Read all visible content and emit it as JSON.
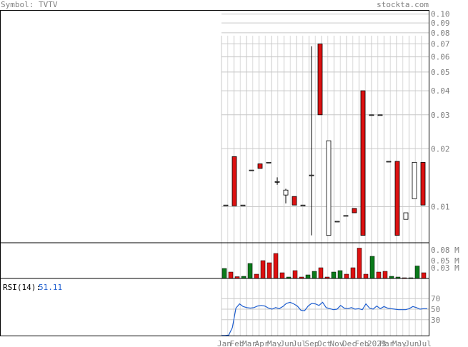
{
  "header": {
    "symbol_label": "Symbol: TVTV",
    "brand": "stockta.com"
  },
  "colors": {
    "up": "#ffffff",
    "down": "#dd1111",
    "vol_up": "#0a7a1a",
    "vol_down": "#dd1111",
    "rsi_line": "#1f5fd0",
    "grid": "#c8c8c8",
    "axis_text": "#808080",
    "frame": "#000000"
  },
  "chart_data": [
    {
      "type": "candlestick",
      "panel": "price",
      "y_scale": "log",
      "ylim": [
        0.0065,
        0.105
      ],
      "y_ticks": [
        0.01,
        0.02,
        0.03,
        0.04,
        0.05,
        0.06,
        0.07,
        0.08,
        0.09,
        0.1
      ],
      "y_tick_labels": [
        "0.01",
        "0.02",
        "0.03",
        "0.04",
        "0.05",
        "0.06",
        "0.07",
        "0.08",
        "0.09",
        "0.10"
      ],
      "x_labels": [
        "Jan",
        "Feb",
        "Mar",
        "Apr",
        "May",
        "Jun",
        "Jul",
        "Sep",
        "Oct",
        "Nov",
        "Dec",
        "Feb",
        "2023",
        "Mar",
        "May",
        "Jun",
        "Jul"
      ],
      "x_label_text": [
        "Jan",
        "Feb",
        "Mar",
        "Apr",
        "May",
        "Jun",
        "Jul",
        "Sep",
        "Oct",
        "Nov",
        "Dec",
        "Feb",
        "2023",
        "Mar",
        "May",
        "Jun",
        "Jul"
      ],
      "bars": [
        {
          "o": 0.0102,
          "h": 0.0102,
          "l": 0.0102,
          "c": 0.0102
        },
        {
          "o": 0.0182,
          "h": 0.0182,
          "l": 0.0101,
          "c": 0.0101
        },
        {
          "o": 0.0102,
          "h": 0.0102,
          "l": 0.0102,
          "c": 0.0102
        },
        {
          "o": 0.0155,
          "h": 0.0155,
          "l": 0.0155,
          "c": 0.0155
        },
        {
          "o": 0.0167,
          "h": 0.0167,
          "l": 0.0158,
          "c": 0.0158
        },
        {
          "o": 0.017,
          "h": 0.017,
          "l": 0.017,
          "c": 0.017
        },
        {
          "o": 0.0135,
          "h": 0.0142,
          "l": 0.013,
          "c": 0.0135
        },
        {
          "o": 0.0115,
          "h": 0.0124,
          "l": 0.0104,
          "c": 0.0122
        },
        {
          "o": 0.0113,
          "h": 0.0113,
          "l": 0.0102,
          "c": 0.0102
        },
        {
          "o": 0.0102,
          "h": 0.0102,
          "l": 0.0102,
          "c": 0.0102
        },
        {
          "o": 0.0146,
          "h": 0.068,
          "l": 0.0071,
          "c": 0.0146
        },
        {
          "o": 0.07,
          "h": 0.07,
          "l": 0.03,
          "c": 0.03
        },
        {
          "o": 0.0071,
          "h": 0.022,
          "l": 0.0071,
          "c": 0.022
        },
        {
          "o": 0.0084,
          "h": 0.0084,
          "l": 0.0084,
          "c": 0.0084
        },
        {
          "o": 0.009,
          "h": 0.009,
          "l": 0.009,
          "c": 0.009
        },
        {
          "o": 0.0098,
          "h": 0.0098,
          "l": 0.0093,
          "c": 0.0093
        },
        {
          "o": 0.04,
          "h": 0.04,
          "l": 0.0071,
          "c": 0.0071
        },
        {
          "o": 0.03,
          "h": 0.03,
          "l": 0.03,
          "c": 0.03
        },
        {
          "o": 0.03,
          "h": 0.03,
          "l": 0.03,
          "c": 0.03
        },
        {
          "o": 0.0172,
          "h": 0.0172,
          "l": 0.0172,
          "c": 0.0172
        },
        {
          "o": 0.0172,
          "h": 0.0172,
          "l": 0.0071,
          "c": 0.0071
        },
        {
          "o": 0.0086,
          "h": 0.0093,
          "l": 0.0086,
          "c": 0.0093
        },
        {
          "o": 0.011,
          "h": 0.017,
          "l": 0.011,
          "c": 0.017
        },
        {
          "o": 0.017,
          "h": 0.017,
          "l": 0.0102,
          "c": 0.0102
        }
      ]
    },
    {
      "type": "bar",
      "panel": "volume",
      "y_tick_labels": [
        "0.08 M",
        "0.05 M",
        "0.03 M"
      ],
      "y_ticks": [
        0.08,
        0.05,
        0.03
      ],
      "values": [
        {
          "v": 0.028,
          "dir": "up"
        },
        {
          "v": 0.018,
          "dir": "down"
        },
        {
          "v": 0.005,
          "dir": "down"
        },
        {
          "v": 0.006,
          "dir": "up"
        },
        {
          "v": 0.042,
          "dir": "up"
        },
        {
          "v": 0.012,
          "dir": "down"
        },
        {
          "v": 0.05,
          "dir": "down"
        },
        {
          "v": 0.044,
          "dir": "down"
        },
        {
          "v": 0.07,
          "dir": "down"
        },
        {
          "v": 0.016,
          "dir": "down"
        },
        {
          "v": 0.004,
          "dir": "up"
        },
        {
          "v": 0.022,
          "dir": "down"
        },
        {
          "v": 0.004,
          "dir": "down"
        },
        {
          "v": 0.01,
          "dir": "up"
        },
        {
          "v": 0.02,
          "dir": "up"
        },
        {
          "v": 0.03,
          "dir": "down"
        },
        {
          "v": 0.004,
          "dir": "down"
        },
        {
          "v": 0.018,
          "dir": "up"
        },
        {
          "v": 0.022,
          "dir": "up"
        },
        {
          "v": 0.012,
          "dir": "down"
        },
        {
          "v": 0.03,
          "dir": "down"
        },
        {
          "v": 0.085,
          "dir": "down"
        },
        {
          "v": 0.012,
          "dir": "down"
        },
        {
          "v": 0.062,
          "dir": "up"
        },
        {
          "v": 0.018,
          "dir": "down"
        },
        {
          "v": 0.02,
          "dir": "down"
        },
        {
          "v": 0.006,
          "dir": "up"
        },
        {
          "v": 0.004,
          "dir": "up"
        },
        {
          "v": 0.002,
          "dir": "down"
        },
        {
          "v": 0.002,
          "dir": "up"
        },
        {
          "v": 0.035,
          "dir": "up"
        },
        {
          "v": 0.016,
          "dir": "down"
        }
      ],
      "ylim": [
        0,
        0.1
      ]
    },
    {
      "type": "line",
      "panel": "rsi",
      "label": "RSI(14):",
      "value_text": "51.11",
      "y_ticks": [
        70,
        50,
        30
      ],
      "y_tick_labels": [
        "70",
        "50",
        "30"
      ],
      "ylim": [
        0,
        100
      ],
      "values": [
        0,
        0,
        1,
        15,
        52,
        60,
        55,
        53,
        52,
        53,
        56,
        57,
        56,
        52,
        50,
        53,
        51,
        55,
        61,
        63,
        60,
        56,
        48,
        47,
        56,
        61,
        60,
        57,
        63,
        53,
        51,
        49,
        50,
        57,
        52,
        51,
        53,
        50,
        51,
        49,
        60,
        52,
        50,
        56,
        51,
        55,
        52,
        51,
        50,
        49,
        49,
        49,
        51,
        55,
        53,
        50,
        51,
        51
      ]
    }
  ]
}
